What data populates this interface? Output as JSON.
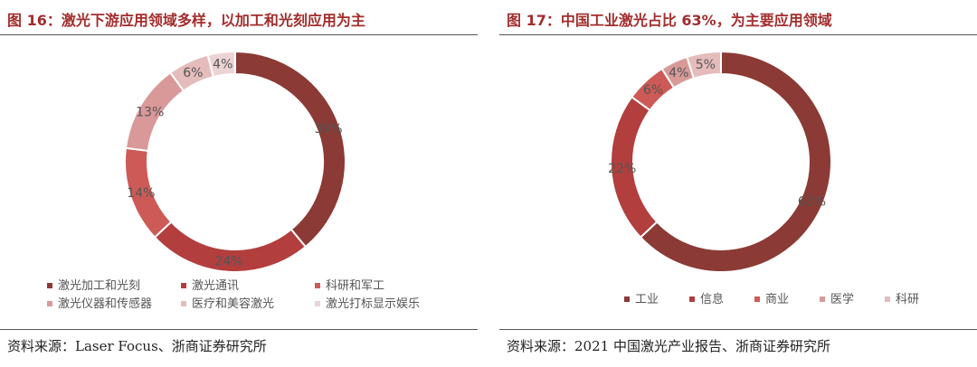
{
  "figures": [
    {
      "title": "图 16：激光下游应用领域多样，以加工和光刻应用为主",
      "source": "资料来源：Laser Focus、浙商证券研究所"
    },
    {
      "title": "图 17：中国工业激光占比 63%，为主要应用领域",
      "source": "资料来源：2021 中国激光产业报告、浙商证券研究所"
    }
  ],
  "chart_data": [
    {
      "type": "pie",
      "donut": true,
      "title": "图 16：激光下游应用领域多样，以加工和光刻应用为主",
      "categories": [
        "激光加工和光刻",
        "激光通讯",
        "科研和军工",
        "激光仪器和传感器",
        "医疗和美容激光",
        "激光打标显示娱乐"
      ],
      "values": [
        39,
        24,
        14,
        13,
        6,
        4
      ],
      "labels": [
        "39%",
        "24%",
        "14%",
        "13%",
        "6%",
        "4%"
      ],
      "colors": [
        "#8b3a35",
        "#b23e3e",
        "#cd5a56",
        "#d99999",
        "#e5bcbc",
        "#edd4d4"
      ],
      "legend_position": "bottom"
    },
    {
      "type": "pie",
      "donut": true,
      "title": "图 17：中国工业激光占比 63%，为主要应用领域",
      "categories": [
        "工业",
        "信息",
        "商业",
        "医学",
        "科研"
      ],
      "values": [
        63,
        22,
        6,
        4,
        5
      ],
      "labels": [
        "63%",
        "22%",
        "6%",
        "4%",
        "5%"
      ],
      "colors": [
        "#8b3a35",
        "#b23e3e",
        "#cd5a56",
        "#d99999",
        "#e5bcbc"
      ],
      "legend_position": "bottom"
    }
  ]
}
